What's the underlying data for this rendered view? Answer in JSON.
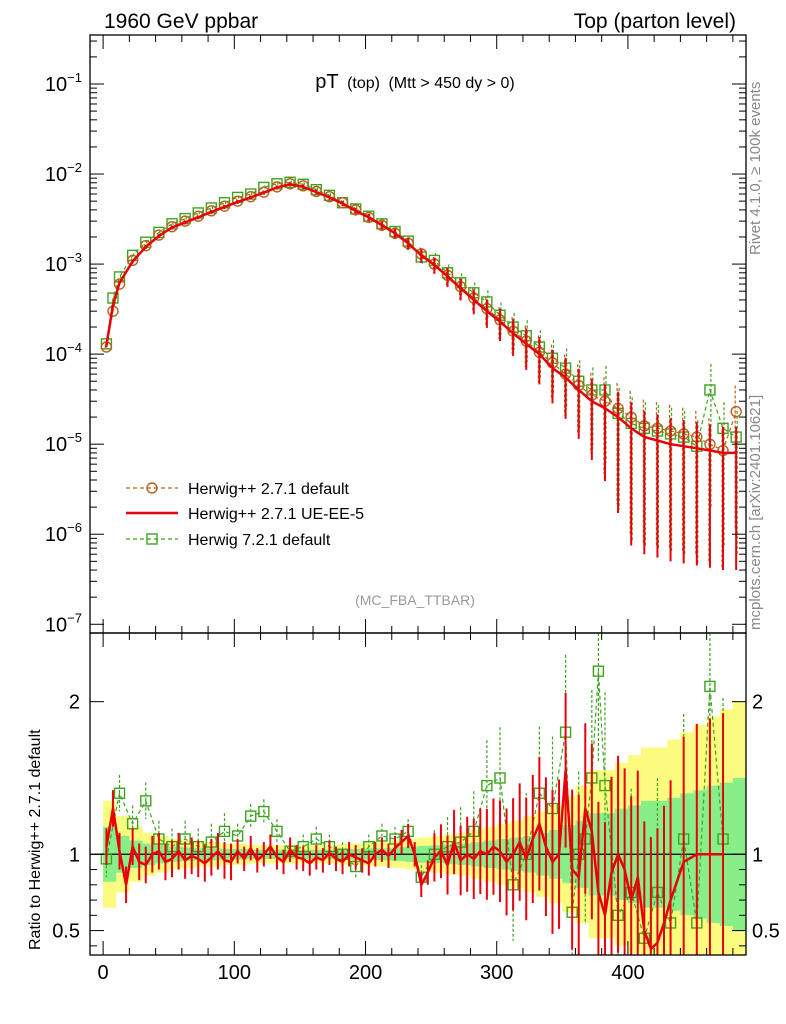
{
  "header": {
    "left": "1960 GeV ppbar",
    "right": "Top (parton level)"
  },
  "side_labels": {
    "rivet": "Rivet 4.1.0, ≥ 100k events",
    "mcplots": "mcplots.cern.ch [arXiv:2401.10621]"
  },
  "chart_data": [
    {
      "type": "line",
      "panel": "main",
      "title_main": "pT",
      "title_sub": "(top)",
      "title_cuts": "(Mtt > 450 dy > 0)",
      "watermark": "(MC_FBA_TTBAR)",
      "yscale": "log",
      "xlim": [
        -10,
        490
      ],
      "ylim": [
        8e-08,
        0.35
      ],
      "y_ticks": [
        {
          "value": 0.1,
          "label": "10",
          "exp": "−1"
        },
        {
          "value": 0.01,
          "label": "10",
          "exp": "−2"
        },
        {
          "value": 0.001,
          "label": "10",
          "exp": "−3"
        },
        {
          "value": 0.0001,
          "label": "10",
          "exp": "−4"
        },
        {
          "value": 1e-05,
          "label": "10",
          "exp": "−5"
        },
        {
          "value": 1e-06,
          "label": "10",
          "exp": "−6"
        },
        {
          "value": 1e-07,
          "label": "10",
          "exp": "−7"
        }
      ],
      "legend_position": "bottom-left",
      "series": [
        {
          "name": "Herwig++ 2.7.1 default",
          "color": "#b8621b",
          "marker": "circle",
          "style": "dashed",
          "x": [
            2.5,
            7.5,
            12.5,
            22.5,
            32.5,
            42.5,
            52.5,
            62.5,
            72.5,
            82.5,
            92.5,
            102.5,
            112.5,
            122.5,
            132.5,
            142.5,
            152.5,
            162.5,
            172.5,
            182.5,
            192.5,
            202.5,
            212.5,
            222.5,
            232.5,
            242.5,
            252.5,
            262.5,
            272.5,
            282.5,
            292.5,
            302.5,
            312.5,
            322.5,
            332.5,
            342.5,
            352.5,
            362.5,
            372.5,
            382.5,
            392.5,
            402.5,
            412.5,
            422.5,
            432.5,
            442.5,
            452.5,
            462.5,
            472.5,
            482.5
          ],
          "values": [
            0.00012,
            0.0003,
            0.0006,
            0.0011,
            0.0016,
            0.0021,
            0.0026,
            0.003,
            0.0034,
            0.0039,
            0.0044,
            0.005,
            0.0056,
            0.0063,
            0.0072,
            0.0078,
            0.0074,
            0.0064,
            0.0056,
            0.0048,
            0.004,
            0.0033,
            0.0027,
            0.0022,
            0.0017,
            0.0013,
            0.001,
            0.00075,
            0.00056,
            0.00042,
            0.00032,
            0.00024,
            0.00018,
            0.00014,
            0.000105,
            8e-05,
            6e-05,
            4.5e-05,
            3.5e-05,
            3e-05,
            2.5e-05,
            2e-05,
            1.6e-05,
            1.5e-05,
            1.4e-05,
            1.3e-05,
            1.2e-05,
            1e-05,
            8.5e-06,
            2.3e-05
          ]
        },
        {
          "name": "Herwig++ 2.7.1 UE-EE-5",
          "color": "#e8000b",
          "marker": "none",
          "style": "solid",
          "x": [
            2.5,
            7.5,
            12.5,
            22.5,
            32.5,
            42.5,
            52.5,
            62.5,
            72.5,
            82.5,
            92.5,
            102.5,
            112.5,
            122.5,
            132.5,
            142.5,
            152.5,
            162.5,
            172.5,
            182.5,
            192.5,
            202.5,
            212.5,
            222.5,
            232.5,
            242.5,
            252.5,
            262.5,
            272.5,
            282.5,
            292.5,
            302.5,
            312.5,
            322.5,
            332.5,
            342.5,
            352.5,
            362.5,
            372.5,
            382.5,
            392.5,
            402.5,
            412.5,
            422.5,
            432.5,
            442.5,
            452.5,
            462.5,
            472.5,
            482.5
          ],
          "values": [
            0.000125,
            0.00035,
            0.00062,
            0.00107,
            0.00155,
            0.00205,
            0.00255,
            0.0029,
            0.0033,
            0.0038,
            0.0043,
            0.0049,
            0.0055,
            0.0062,
            0.0071,
            0.0077,
            0.0072,
            0.0063,
            0.0055,
            0.0047,
            0.0039,
            0.0033,
            0.0027,
            0.0022,
            0.0017,
            0.00125,
            0.00098,
            0.00073,
            0.00054,
            0.0004,
            0.0003,
            0.00023,
            0.00017,
            0.00013,
            0.0001,
            7e-05,
            5.5e-05,
            4e-05,
            3e-05,
            2.5e-05,
            2e-05,
            1.5e-05,
            1.2e-05,
            1.1e-05,
            1e-05,
            9.5e-06,
            9e-06,
            8.5e-06,
            8e-06,
            8e-06
          ]
        },
        {
          "name": "Herwig 7.2.1 default",
          "color": "#3fa31f",
          "marker": "square",
          "style": "dashed",
          "x": [
            2.5,
            7.5,
            12.5,
            22.5,
            32.5,
            42.5,
            52.5,
            62.5,
            72.5,
            82.5,
            92.5,
            102.5,
            112.5,
            122.5,
            132.5,
            142.5,
            152.5,
            162.5,
            172.5,
            182.5,
            192.5,
            202.5,
            212.5,
            222.5,
            232.5,
            242.5,
            252.5,
            262.5,
            272.5,
            282.5,
            292.5,
            302.5,
            312.5,
            322.5,
            332.5,
            342.5,
            352.5,
            362.5,
            372.5,
            382.5,
            392.5,
            402.5,
            412.5,
            422.5,
            432.5,
            442.5,
            452.5,
            462.5,
            472.5,
            482.5
          ],
          "values": [
            0.00013,
            0.00042,
            0.00072,
            0.00125,
            0.00175,
            0.00225,
            0.0028,
            0.0032,
            0.0037,
            0.0042,
            0.0048,
            0.0055,
            0.006,
            0.0071,
            0.0078,
            0.0081,
            0.0077,
            0.0067,
            0.0058,
            0.0048,
            0.0041,
            0.0034,
            0.0028,
            0.0023,
            0.0018,
            0.0012,
            0.0011,
            0.0008,
            0.00062,
            0.00048,
            0.00038,
            0.00027,
            0.0002,
            0.00016,
            0.00012,
            9e-05,
            7e-05,
            5e-05,
            4e-05,
            4e-05,
            2.2e-05,
            1.7e-05,
            1.5e-05,
            1.4e-05,
            1.3e-05,
            1.2e-05,
            9.5e-06,
            4e-05,
            1.5e-05,
            1.2e-05
          ]
        }
      ]
    },
    {
      "type": "line",
      "panel": "ratio",
      "ylabel": "Ratio to Herwig++ 2.7.1 default",
      "xlim": [
        -10,
        490
      ],
      "ylim": [
        0.34,
        2.45
      ],
      "y_ticks": [
        0.5,
        1,
        2
      ],
      "y_tick_labels": [
        "0.5",
        "1",
        "2"
      ],
      "x_ticks": [
        0,
        100,
        200,
        300,
        400
      ],
      "x_tick_labels": [
        "0",
        "100",
        "200",
        "300",
        "400"
      ],
      "bands": {
        "x": [
          0,
          10,
          20,
          30,
          40,
          50,
          60,
          70,
          80,
          90,
          100,
          110,
          120,
          130,
          140,
          150,
          160,
          170,
          180,
          190,
          200,
          210,
          220,
          230,
          240,
          250,
          260,
          270,
          280,
          290,
          300,
          310,
          320,
          330,
          340,
          350,
          360,
          370,
          380,
          390,
          400,
          410,
          420,
          430,
          440,
          450,
          460,
          470,
          480
        ],
        "yellow_half": [
          0.35,
          0.25,
          0.18,
          0.14,
          0.12,
          0.1,
          0.09,
          0.08,
          0.08,
          0.07,
          0.07,
          0.06,
          0.06,
          0.06,
          0.06,
          0.06,
          0.06,
          0.06,
          0.07,
          0.07,
          0.08,
          0.08,
          0.09,
          0.1,
          0.11,
          0.12,
          0.13,
          0.14,
          0.16,
          0.18,
          0.2,
          0.22,
          0.25,
          0.28,
          0.32,
          0.38,
          0.45,
          0.55,
          0.55,
          0.6,
          0.65,
          0.7,
          0.7,
          0.75,
          0.8,
          0.85,
          0.9,
          0.95,
          1.0
        ],
        "green_half": [
          0.18,
          0.12,
          0.09,
          0.07,
          0.06,
          0.05,
          0.045,
          0.04,
          0.04,
          0.035,
          0.035,
          0.03,
          0.03,
          0.03,
          0.03,
          0.03,
          0.03,
          0.03,
          0.035,
          0.035,
          0.04,
          0.04,
          0.045,
          0.05,
          0.055,
          0.06,
          0.065,
          0.07,
          0.08,
          0.09,
          0.1,
          0.11,
          0.12,
          0.14,
          0.16,
          0.19,
          0.22,
          0.27,
          0.27,
          0.3,
          0.32,
          0.35,
          0.35,
          0.37,
          0.4,
          0.42,
          0.45,
          0.47,
          0.5
        ]
      },
      "series": [
        {
          "name": "Herwig++ 2.7.1 UE-EE-5",
          "color": "#e8000b",
          "x": [
            2.5,
            7.5,
            12.5,
            17.5,
            22.5,
            27.5,
            32.5,
            37.5,
            42.5,
            47.5,
            52.5,
            57.5,
            62.5,
            67.5,
            72.5,
            77.5,
            82.5,
            87.5,
            92.5,
            97.5,
            102.5,
            107.5,
            112.5,
            117.5,
            122.5,
            127.5,
            132.5,
            137.5,
            142.5,
            147.5,
            152.5,
            157.5,
            162.5,
            167.5,
            172.5,
            177.5,
            182.5,
            187.5,
            192.5,
            197.5,
            202.5,
            207.5,
            212.5,
            217.5,
            222.5,
            227.5,
            232.5,
            237.5,
            242.5,
            247.5,
            252.5,
            257.5,
            262.5,
            267.5,
            272.5,
            277.5,
            282.5,
            287.5,
            292.5,
            297.5,
            302.5,
            307.5,
            312.5,
            317.5,
            322.5,
            327.5,
            332.5,
            337.5,
            342.5,
            347.5,
            352.5,
            357.5,
            362.5,
            367.5,
            372.5,
            377.5,
            382.5,
            387.5,
            392.5,
            397.5,
            402.5,
            407.5,
            412.5,
            417.5,
            422.5,
            427.5,
            432.5,
            442.5,
            452.5,
            462.5,
            472.5
          ],
          "values": [
            1.05,
            1.3,
            1.02,
            0.8,
            1.05,
            0.95,
            0.93,
            1.0,
            1.02,
            0.95,
            0.97,
            1.02,
            0.96,
            0.99,
            0.97,
            0.94,
            0.98,
            1.02,
            0.96,
            0.95,
            1.02,
            0.97,
            1.04,
            0.96,
            1.0,
            1.05,
            0.98,
            0.95,
            1.03,
            0.98,
            0.97,
            0.94,
            0.98,
            0.96,
            1.01,
            0.97,
            0.95,
            1.0,
            0.98,
            0.96,
            0.94,
            1.0,
            1.03,
            0.99,
            1.04,
            1.08,
            1.12,
            1.0,
            0.8,
            0.88,
            0.98,
            1.02,
            0.93,
            1.08,
            0.96,
            1.0,
            0.97,
            1.02,
            1.0,
            1.05,
            1.02,
            0.95,
            1.0,
            1.08,
            0.97,
            1.1,
            1.2,
            1.05,
            0.95,
            1.0,
            1.55,
            0.9,
            0.85,
            1.3,
            1.15,
            0.75,
            0.6,
            0.88,
            1.0,
            0.9,
            0.7,
            0.85,
            0.5,
            0.38,
            0.42,
            0.55,
            0.7,
            0.95,
            1.0,
            1.0,
            1.0
          ]
        },
        {
          "name": "Herwig 7.2.1 default",
          "color": "#3fa31f",
          "x": [
            2.5,
            12.5,
            22.5,
            32.5,
            42.5,
            52.5,
            62.5,
            72.5,
            82.5,
            92.5,
            102.5,
            112.5,
            122.5,
            132.5,
            142.5,
            152.5,
            162.5,
            172.5,
            182.5,
            192.5,
            202.5,
            212.5,
            222.5,
            232.5,
            242.5,
            252.5,
            262.5,
            272.5,
            282.5,
            292.5,
            302.5,
            312.5,
            322.5,
            332.5,
            342.5,
            352.5,
            357.5,
            362.5,
            367.5,
            372.5,
            377.5,
            382.5,
            392.5,
            402.5,
            412.5,
            422.5,
            432.5,
            442.5,
            452.5,
            462.5,
            472.5
          ],
          "values": [
            0.97,
            1.4,
            1.2,
            1.35,
            1.1,
            1.05,
            1.1,
            1.05,
            1.08,
            1.15,
            1.12,
            1.25,
            1.28,
            1.15,
            1.02,
            1.05,
            1.1,
            1.05,
            1.0,
            0.92,
            1.05,
            1.12,
            1.1,
            1.15,
            0.85,
            1.0,
            1.05,
            1.08,
            1.15,
            1.45,
            1.5,
            0.8,
            1.0,
            1.4,
            1.3,
            1.8,
            0.62,
            1.0,
            1.1,
            1.5,
            2.2,
            1.45,
            0.6,
            0.75,
            0.45,
            0.75,
            0.55,
            1.1,
            0.55,
            2.1,
            1.1
          ]
        }
      ]
    }
  ]
}
